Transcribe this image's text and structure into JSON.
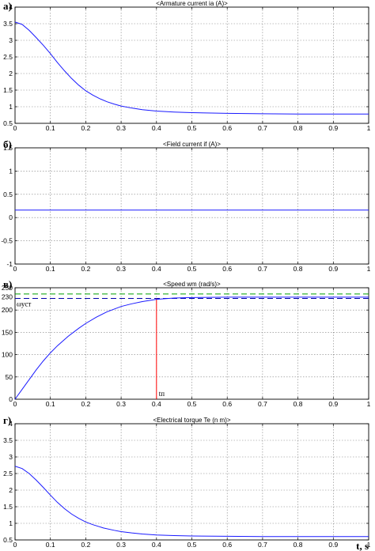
{
  "colors": {
    "curve": "#1a1aff",
    "grid": "#808080",
    "settling_line": "#ff0000",
    "ref_green": "#00a000",
    "ref_blue": "#0000aa"
  },
  "x_axis_label": "t, s",
  "chart_data": [
    {
      "type": "line",
      "panel_label": "a)",
      "title": "<Armature current ia (A)>",
      "xlim": [
        0,
        1
      ],
      "ylim": [
        0.5,
        4
      ],
      "xticks": [
        "0",
        "0.1",
        "0.2",
        "0.3",
        "0.4",
        "0.5",
        "0.6",
        "0.7",
        "0.8",
        "0.9",
        "1"
      ],
      "yticks": [
        "0.5",
        "1",
        "1.5",
        "2",
        "2.5",
        "3",
        "3.5",
        "4"
      ],
      "grid": true,
      "series": [
        {
          "x": [
            0,
            0.02,
            0.04,
            0.06,
            0.08,
            0.1,
            0.12,
            0.14,
            0.16,
            0.18,
            0.2,
            0.22,
            0.24,
            0.26,
            0.28,
            0.3,
            0.33,
            0.36,
            0.4,
            0.45,
            0.5,
            0.6,
            0.7,
            0.8,
            0.9,
            1.0
          ],
          "y": [
            3.55,
            3.48,
            3.3,
            3.08,
            2.85,
            2.6,
            2.33,
            2.08,
            1.85,
            1.65,
            1.48,
            1.35,
            1.24,
            1.15,
            1.08,
            1.02,
            0.96,
            0.91,
            0.87,
            0.84,
            0.82,
            0.8,
            0.79,
            0.78,
            0.78,
            0.78
          ]
        }
      ]
    },
    {
      "type": "line",
      "panel_label": "б)",
      "title": "<Field current if (A)>",
      "xlim": [
        0,
        1
      ],
      "ylim": [
        -1,
        1.5
      ],
      "xticks": [
        "0",
        "0.1",
        "0.2",
        "0.3",
        "0.4",
        "0.5",
        "0.6",
        "0.7",
        "0.8",
        "0.9",
        "1"
      ],
      "yticks": [
        "-1",
        "-0.5",
        "0",
        "0.5",
        "1",
        "1.5"
      ],
      "grid": true,
      "series": [
        {
          "x": [
            0,
            1
          ],
          "y": [
            0.16,
            0.16
          ]
        }
      ]
    },
    {
      "type": "line",
      "panel_label": "в)",
      "title": "<Speed wm (rad/s)>",
      "xlim": [
        0,
        1
      ],
      "ylim": [
        0,
        250
      ],
      "xticks": [
        "0",
        "0.1",
        "0.2",
        "0.3",
        "0.4",
        "0.5",
        "0.6",
        "0.7",
        "0.8",
        "0.9",
        "1"
      ],
      "yticks": [
        "0",
        "50",
        "100",
        "150",
        "200",
        "250"
      ],
      "extra_ytick": "230",
      "grid": true,
      "series": [
        {
          "x": [
            0,
            0.02,
            0.04,
            0.06,
            0.08,
            0.1,
            0.12,
            0.15,
            0.18,
            0.2,
            0.23,
            0.26,
            0.3,
            0.33,
            0.36,
            0.4,
            0.45,
            0.5,
            0.6,
            0.7,
            0.8,
            0.9,
            1.0
          ],
          "y": [
            0,
            22,
            44,
            66,
            86,
            104,
            120,
            141,
            159,
            170,
            184,
            196,
            208,
            214,
            219,
            224,
            227,
            228,
            229,
            229,
            229,
            229,
            229
          ]
        }
      ],
      "reference_lines": [
        {
          "y": 236,
          "color": "green",
          "style": "dashed"
        },
        {
          "y": 226,
          "color": "blue",
          "style": "dashed"
        }
      ],
      "settling_marker": {
        "x": 0.4,
        "label": "tп"
      },
      "steady_label": "ωуст"
    },
    {
      "type": "line",
      "panel_label": "г)",
      "title": "<Electrical torque Te (n m)>",
      "xlim": [
        0,
        1
      ],
      "ylim": [
        0.5,
        4
      ],
      "xticks": [
        "0",
        "0.1",
        "0.2",
        "0.3",
        "0.4",
        "0.5",
        "0.6",
        "0.7",
        "0.8",
        "0.9",
        "1"
      ],
      "yticks": [
        "0.5",
        "1",
        "1.5",
        "2",
        "2.5",
        "3",
        "3.5",
        "4"
      ],
      "grid": true,
      "series": [
        {
          "x": [
            0,
            0.02,
            0.04,
            0.06,
            0.08,
            0.1,
            0.12,
            0.14,
            0.16,
            0.18,
            0.2,
            0.22,
            0.25,
            0.28,
            0.3,
            0.33,
            0.36,
            0.4,
            0.45,
            0.5,
            0.6,
            0.7,
            0.8,
            0.9,
            1.0
          ],
          "y": [
            2.72,
            2.65,
            2.5,
            2.3,
            2.08,
            1.85,
            1.63,
            1.44,
            1.28,
            1.15,
            1.04,
            0.96,
            0.86,
            0.79,
            0.75,
            0.71,
            0.68,
            0.65,
            0.63,
            0.62,
            0.61,
            0.6,
            0.6,
            0.6,
            0.6
          ]
        }
      ]
    }
  ]
}
